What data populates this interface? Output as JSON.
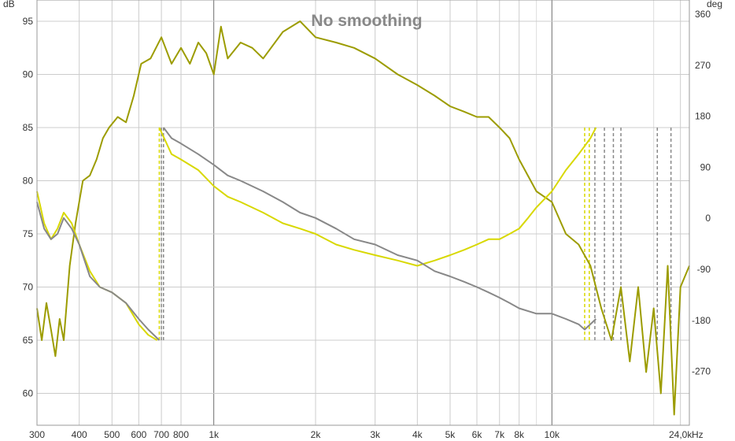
{
  "chart_data": {
    "type": "line",
    "title": "No smoothing",
    "left_unit": "dB",
    "right_unit": "deg",
    "x_unit": "Hz",
    "x_scale": "log",
    "xlim": [
      300,
      25500
    ],
    "ylim": [
      57,
      97
    ],
    "y2lim": [
      -365,
      385
    ],
    "grid": true,
    "x_ticks": [
      {
        "v": 300,
        "label": "300"
      },
      {
        "v": 400,
        "label": "400"
      },
      {
        "v": 500,
        "label": "500"
      },
      {
        "v": 600,
        "label": "600"
      },
      {
        "v": 700,
        "label": "700"
      },
      {
        "v": 800,
        "label": "800"
      },
      {
        "v": 1000,
        "label": "1k"
      },
      {
        "v": 2000,
        "label": "2k"
      },
      {
        "v": 3000,
        "label": "3k"
      },
      {
        "v": 4000,
        "label": "4k"
      },
      {
        "v": 5000,
        "label": "5k"
      },
      {
        "v": 6000,
        "label": "6k"
      },
      {
        "v": 7000,
        "label": "7k"
      },
      {
        "v": 8000,
        "label": "8k"
      },
      {
        "v": 10000,
        "label": "10k"
      },
      {
        "v": 24000,
        "label": "24,0k"
      }
    ],
    "y_ticks": [
      {
        "v": 95,
        "label": "95"
      },
      {
        "v": 90,
        "label": "90"
      },
      {
        "v": 85,
        "label": "85"
      },
      {
        "v": 80,
        "label": "80"
      },
      {
        "v": 75,
        "label": "75"
      },
      {
        "v": 70,
        "label": "70"
      },
      {
        "v": 65,
        "label": "65"
      },
      {
        "v": 60,
        "label": "60"
      }
    ],
    "y2_ticks": [
      {
        "v": 360,
        "label": "360"
      },
      {
        "v": 270,
        "label": "270"
      },
      {
        "v": 180,
        "label": "180"
      },
      {
        "v": 90,
        "label": "90"
      },
      {
        "v": 0,
        "label": "0"
      },
      {
        "v": -90,
        "label": "-90"
      },
      {
        "v": -180,
        "label": "-180"
      },
      {
        "v": -270,
        "label": "-270"
      }
    ],
    "series": [
      {
        "color": "#9c9c00",
        "axis": "left",
        "style": "solid",
        "width": 2,
        "x": [
          300,
          310,
          320,
          330,
          340,
          350,
          360,
          375,
          390,
          410,
          430,
          450,
          470,
          490,
          520,
          550,
          580,
          610,
          650,
          700,
          750,
          800,
          850,
          900,
          950,
          1000,
          1050,
          1100,
          1200,
          1300,
          1400,
          1600,
          1800,
          2000,
          2300,
          2600,
          3000,
          3500,
          4000,
          4500,
          5000,
          5500,
          6000,
          6500,
          7000,
          7500,
          8000,
          9000,
          10000,
          11000,
          12000,
          13000,
          14000,
          15000,
          16000,
          17000,
          18000,
          19000,
          20000,
          21000,
          22000,
          23000,
          24000,
          25500
        ],
        "y": [
          68.0,
          65.0,
          68.5,
          66.0,
          63.5,
          67.0,
          65.0,
          72.0,
          76.0,
          80.0,
          80.5,
          82.0,
          84.0,
          85.0,
          86.0,
          85.5,
          88.0,
          91.0,
          91.5,
          93.5,
          91.0,
          92.5,
          91.0,
          93.0,
          92.0,
          90.0,
          94.5,
          91.5,
          93.0,
          92.5,
          91.5,
          94.0,
          95.0,
          93.5,
          93.0,
          92.5,
          91.5,
          90.0,
          89.0,
          88.0,
          87.0,
          86.5,
          86.0,
          86.0,
          85.0,
          84.0,
          82.0,
          79.0,
          78.0,
          75.0,
          74.0,
          72.0,
          68.0,
          65.0,
          70.0,
          63.0,
          70.0,
          62.0,
          68.0,
          60.0,
          72.0,
          58.0,
          70.0,
          72.0
        ]
      },
      {
        "color": "#d8d800",
        "axis": "left",
        "style": "solid",
        "width": 2,
        "x": [
          300,
          315,
          330,
          345,
          360,
          380,
          400,
          430,
          460,
          500,
          550,
          600,
          640,
          680
        ],
        "y": [
          79.0,
          76.0,
          74.5,
          75.5,
          77.0,
          76.0,
          74.0,
          71.5,
          70.0,
          69.5,
          68.5,
          66.5,
          65.5,
          65.0
        ]
      },
      {
        "color": "#d8d800",
        "axis": "left",
        "style": "solid",
        "width": 2,
        "x": [
          690,
          750,
          800,
          900,
          1000,
          1100,
          1200,
          1400,
          1600,
          1800,
          2000,
          2300,
          2600,
          3000,
          3500,
          4000,
          4500,
          5000,
          5500,
          6000,
          6500,
          7000,
          7500,
          8000,
          8500,
          9000,
          10000,
          11000,
          12000,
          13000,
          13500
        ],
        "y": [
          85.0,
          82.5,
          82.0,
          81.0,
          79.5,
          78.5,
          78.0,
          77.0,
          76.0,
          75.5,
          75.0,
          74.0,
          73.5,
          73.0,
          72.5,
          72.0,
          72.5,
          73.0,
          73.5,
          74.0,
          74.5,
          74.5,
          75.0,
          75.5,
          76.5,
          77.5,
          79.0,
          81.0,
          82.5,
          84.0,
          85.0
        ]
      },
      {
        "color": "#888888",
        "axis": "left",
        "style": "solid",
        "width": 2,
        "x": [
          300,
          315,
          330,
          345,
          360,
          380,
          400,
          430,
          460,
          500,
          550,
          600,
          640,
          690
        ],
        "y": [
          78.0,
          75.5,
          74.5,
          75.0,
          76.5,
          75.5,
          74.0,
          71.0,
          70.0,
          69.5,
          68.5,
          67.0,
          66.0,
          65.0
        ]
      },
      {
        "color": "#888888",
        "axis": "left",
        "style": "solid",
        "width": 2,
        "x": [
          710,
          750,
          800,
          900,
          1000,
          1100,
          1200,
          1400,
          1600,
          1800,
          2000,
          2300,
          2600,
          3000,
          3500,
          4000,
          4500,
          5000,
          5500,
          6000,
          6500,
          7000,
          7500,
          8000,
          9000,
          10000,
          11000,
          12000,
          12500,
          13500
        ],
        "y": [
          85.0,
          84.0,
          83.5,
          82.5,
          81.5,
          80.5,
          80.0,
          79.0,
          78.0,
          77.0,
          76.5,
          75.5,
          74.5,
          74.0,
          73.0,
          72.5,
          71.5,
          71.0,
          70.5,
          70.0,
          69.5,
          69.0,
          68.5,
          68.0,
          67.5,
          67.5,
          67.0,
          66.5,
          66.0,
          67.0
        ]
      }
    ]
  }
}
